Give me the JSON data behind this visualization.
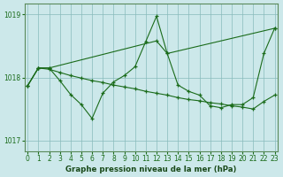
{
  "title": "Graphe pression niveau de la mer (hPa)",
  "background_color": "#cce8ea",
  "grid_color": "#88bbbb",
  "line_color": "#1a6b1a",
  "xlim": [
    -0.3,
    23.3
  ],
  "ylim": [
    1016.83,
    1019.17
  ],
  "yticks": [
    1017,
    1018,
    1019
  ],
  "xticks": [
    0,
    1,
    2,
    3,
    4,
    5,
    6,
    7,
    8,
    9,
    10,
    11,
    12,
    13,
    14,
    15,
    16,
    17,
    18,
    19,
    20,
    21,
    22,
    23
  ],
  "line1_x": [
    0,
    1,
    2,
    3,
    4,
    5,
    6,
    7,
    8,
    9,
    10,
    11,
    12,
    13,
    14,
    15,
    16,
    17,
    18,
    19,
    20,
    21,
    22,
    23
  ],
  "line1_y": [
    1017.87,
    1018.15,
    1018.15,
    1017.95,
    1017.73,
    1017.57,
    1017.35,
    1017.75,
    1017.93,
    1018.03,
    1018.17,
    1018.57,
    1018.97,
    1018.38,
    1017.88,
    1017.78,
    1017.72,
    1017.55,
    1017.52,
    1017.57,
    1017.57,
    1017.68,
    1018.38,
    1018.78
  ],
  "line2_x": [
    0,
    1,
    2,
    12,
    13,
    23
  ],
  "line2_y": [
    1017.87,
    1018.15,
    1018.15,
    1018.58,
    1018.38,
    1018.78
  ],
  "line3_x": [
    0,
    1,
    2,
    3,
    4,
    5,
    6,
    7,
    8,
    9,
    10,
    11,
    12,
    13,
    14,
    15,
    16,
    17,
    18,
    19,
    20,
    21,
    22,
    23
  ],
  "line3_y": [
    1017.87,
    1018.15,
    1018.13,
    1018.08,
    1018.03,
    1017.99,
    1017.95,
    1017.92,
    1017.88,
    1017.85,
    1017.82,
    1017.78,
    1017.75,
    1017.72,
    1017.68,
    1017.65,
    1017.63,
    1017.6,
    1017.58,
    1017.55,
    1017.53,
    1017.5,
    1017.62,
    1017.72
  ]
}
